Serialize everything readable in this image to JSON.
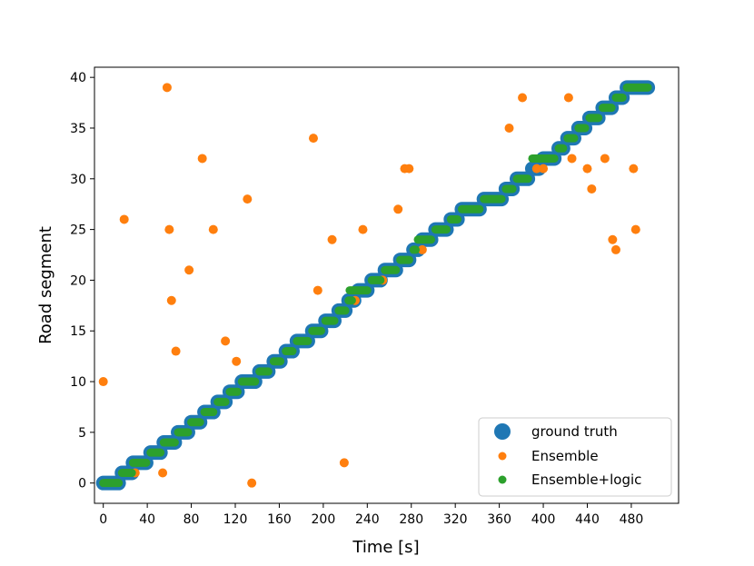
{
  "chart_data": {
    "type": "scatter",
    "title": "",
    "xlabel": "Time [s]",
    "ylabel": "Road segment",
    "xlim": [
      -8,
      523
    ],
    "ylim": [
      -2,
      41
    ],
    "xticks": [
      0,
      40,
      80,
      120,
      160,
      200,
      240,
      280,
      320,
      360,
      400,
      440,
      480
    ],
    "yticks": [
      0,
      5,
      10,
      15,
      20,
      25,
      30,
      35,
      40
    ],
    "grid": false,
    "legend_position": "lower-right",
    "series": [
      {
        "name": "ground truth",
        "color": "#1f77b4",
        "segment_runs": [
          [
            0,
            0,
            14
          ],
          [
            1,
            17,
            26
          ],
          [
            2,
            27,
            39
          ],
          [
            3,
            43,
            52
          ],
          [
            4,
            55,
            65
          ],
          [
            5,
            68,
            77
          ],
          [
            6,
            80,
            88
          ],
          [
            7,
            92,
            100
          ],
          [
            8,
            104,
            111
          ],
          [
            9,
            115,
            122
          ],
          [
            10,
            126,
            138
          ],
          [
            11,
            142,
            150
          ],
          [
            12,
            155,
            161
          ],
          [
            13,
            166,
            172
          ],
          [
            14,
            176,
            186
          ],
          [
            15,
            190,
            198
          ],
          [
            16,
            202,
            210
          ],
          [
            17,
            214,
            220
          ],
          [
            18,
            223,
            228
          ],
          [
            19,
            232,
            240
          ],
          [
            20,
            244,
            252
          ],
          [
            21,
            256,
            266
          ],
          [
            22,
            270,
            278
          ],
          [
            23,
            282,
            286
          ],
          [
            24,
            290,
            298
          ],
          [
            25,
            302,
            312
          ],
          [
            26,
            316,
            322
          ],
          [
            27,
            326,
            342
          ],
          [
            28,
            346,
            362
          ],
          [
            29,
            366,
            372
          ],
          [
            30,
            376,
            386
          ],
          [
            31,
            390,
            396
          ],
          [
            32,
            400,
            410
          ],
          [
            33,
            414,
            418
          ],
          [
            34,
            422,
            428
          ],
          [
            35,
            432,
            438
          ],
          [
            36,
            442,
            450
          ],
          [
            37,
            454,
            462
          ],
          [
            38,
            466,
            472
          ],
          [
            39,
            476,
            495
          ]
        ]
      },
      {
        "name": "Ensemble",
        "color": "#ff7f0e",
        "points": [
          [
            0,
            10
          ],
          [
            19,
            26
          ],
          [
            29,
            1
          ],
          [
            54,
            1
          ],
          [
            58,
            39
          ],
          [
            60,
            25
          ],
          [
            62,
            18
          ],
          [
            66,
            13
          ],
          [
            78,
            21
          ],
          [
            90,
            32
          ],
          [
            100,
            25
          ],
          [
            111,
            14
          ],
          [
            121,
            12
          ],
          [
            131,
            28
          ],
          [
            135,
            0
          ],
          [
            191,
            34
          ],
          [
            195,
            19
          ],
          [
            208,
            24
          ],
          [
            219,
            2
          ],
          [
            229,
            18
          ],
          [
            236,
            25
          ],
          [
            254,
            20
          ],
          [
            268,
            27
          ],
          [
            274,
            31
          ],
          [
            278,
            31
          ],
          [
            290,
            23
          ],
          [
            369,
            35
          ],
          [
            381,
            38
          ],
          [
            394,
            31
          ],
          [
            400,
            31
          ],
          [
            423,
            38
          ],
          [
            426,
            32
          ],
          [
            440,
            31
          ],
          [
            444,
            29
          ],
          [
            456,
            32
          ],
          [
            463,
            24
          ],
          [
            466,
            23
          ],
          [
            482,
            31
          ],
          [
            484,
            25
          ]
        ]
      },
      {
        "name": "Ensemble+logic",
        "color": "#2ca02c",
        "segment_runs": [
          [
            0,
            0,
            14
          ],
          [
            1,
            17,
            26
          ],
          [
            2,
            27,
            39
          ],
          [
            3,
            43,
            52
          ],
          [
            4,
            55,
            65
          ],
          [
            5,
            68,
            77
          ],
          [
            6,
            80,
            88
          ],
          [
            7,
            92,
            100
          ],
          [
            8,
            104,
            111
          ],
          [
            9,
            115,
            122
          ],
          [
            10,
            126,
            138
          ],
          [
            11,
            142,
            150
          ],
          [
            12,
            155,
            161
          ],
          [
            13,
            166,
            172
          ],
          [
            14,
            176,
            186
          ],
          [
            15,
            190,
            198
          ],
          [
            16,
            202,
            210
          ],
          [
            17,
            214,
            220
          ],
          [
            18,
            223,
            226
          ],
          [
            19,
            224,
            240
          ],
          [
            20,
            244,
            252
          ],
          [
            21,
            256,
            266
          ],
          [
            22,
            270,
            278
          ],
          [
            23,
            282,
            284
          ],
          [
            24,
            286,
            298
          ],
          [
            25,
            302,
            312
          ],
          [
            26,
            316,
            322
          ],
          [
            27,
            326,
            342
          ],
          [
            28,
            346,
            362
          ],
          [
            29,
            366,
            372
          ],
          [
            30,
            376,
            386
          ],
          [
            32,
            390,
            410
          ],
          [
            33,
            414,
            418
          ],
          [
            34,
            422,
            428
          ],
          [
            35,
            432,
            438
          ],
          [
            36,
            442,
            450
          ],
          [
            37,
            454,
            462
          ],
          [
            38,
            466,
            472
          ],
          [
            39,
            476,
            495
          ]
        ]
      }
    ]
  }
}
